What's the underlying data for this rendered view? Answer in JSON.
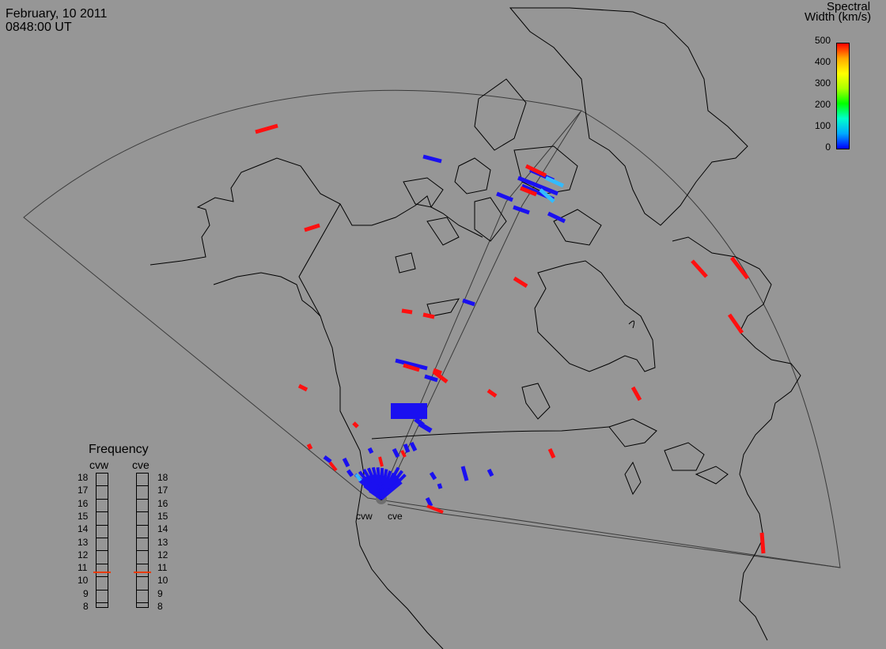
{
  "header": {
    "date": "February, 10 2011",
    "time": "0848:00 UT"
  },
  "colorbar": {
    "title_line1": "Spectral",
    "title_line2": "Width (km/s)",
    "ticks": [
      "500",
      "400",
      "300",
      "200",
      "100",
      "0"
    ],
    "colors": [
      "#0000ff",
      "#00aaff",
      "#00ffcc",
      "#00ff00",
      "#aaff00",
      "#ffff00",
      "#ffaa00",
      "#ff0000"
    ]
  },
  "frequency_panel": {
    "title": "Frequency",
    "radars": [
      "cvw",
      "cve"
    ],
    "scale": [
      "18",
      "17",
      "16",
      "15",
      "14",
      "13",
      "12",
      "11",
      "10",
      "9",
      "8"
    ],
    "cvw_value_mhz": 10.7,
    "cve_value_mhz": 10.7
  },
  "sites": {
    "west": "cvw",
    "east": "cve"
  },
  "colors": {
    "background": "#969696",
    "coast": "#000000",
    "fov": "#3a3a3a",
    "low_width": "#1a10f0",
    "high_width": "#ff1010",
    "mid_width": "#33bbff"
  }
}
